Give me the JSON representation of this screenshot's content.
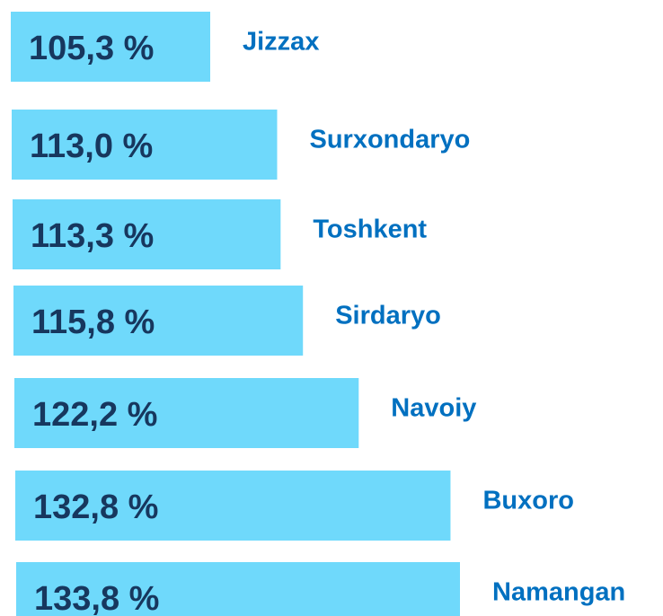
{
  "chart_data": {
    "type": "bar",
    "orientation": "horizontal",
    "categories": [
      "Jizzax",
      "Surxondaryo",
      "Toshkent",
      "Sirdaryo",
      "Navoiy",
      "Buxoro",
      "Namangan"
    ],
    "values": [
      105.3,
      113.0,
      113.3,
      115.8,
      122.2,
      132.8,
      133.8
    ],
    "value_labels": [
      "105,3 %",
      "113,0 %",
      "113,3 %",
      "115,8 %",
      "122,2 %",
      "132,8 %",
      "133,8 %"
    ],
    "color": "#6fd9fb"
  }
}
